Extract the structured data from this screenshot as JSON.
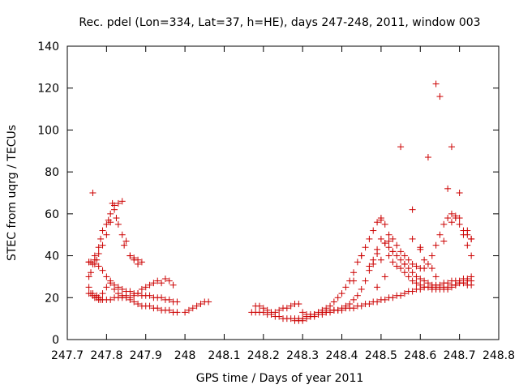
{
  "chart_data": {
    "type": "scatter",
    "title": "Rec. pdel (Lon=334, Lat=37, h=HE), days 247-248, 2011, window 003",
    "xlabel": "GPS time / Days of year 2011",
    "ylabel": "STEC from uqrg / TECUs",
    "xlim": [
      247.7,
      248.8
    ],
    "ylim": [
      0,
      140
    ],
    "x_ticks": [
      247.7,
      247.8,
      247.9,
      248.0,
      248.1,
      248.2,
      248.3,
      248.4,
      248.5,
      248.6,
      248.7,
      248.8
    ],
    "x_tick_labels": [
      "247.7",
      "247.8",
      "247.9",
      "248",
      "248.1",
      "248.2",
      "248.3",
      "248.4",
      "248.5",
      "248.6",
      "248.7",
      "248.8"
    ],
    "y_ticks": [
      0,
      20,
      40,
      60,
      80,
      100,
      120,
      140
    ],
    "y_tick_labels": [
      "0",
      "20",
      "40",
      "60",
      "80",
      "100",
      "120",
      "140"
    ],
    "grid": false,
    "marker": "+",
    "color": "#cc0000",
    "series": [
      {
        "x": [
          247.755,
          247.76,
          247.765,
          247.77,
          247.775,
          247.78,
          247.785,
          247.79,
          247.8,
          247.81,
          247.82,
          247.83,
          247.84,
          247.85,
          247.86,
          247.87,
          247.88,
          247.89,
          247.9,
          247.91,
          247.92,
          247.93,
          247.94,
          247.95,
          247.96,
          247.97,
          247.98,
          248.0,
          248.01,
          248.02,
          248.03,
          248.04,
          248.05,
          248.06,
          247.755,
          247.765,
          247.775,
          247.78,
          247.79,
          247.8,
          247.81,
          247.82,
          247.83,
          247.84,
          247.85,
          247.86,
          247.87,
          247.88,
          247.89,
          247.9,
          247.91,
          247.92,
          247.93,
          247.94,
          247.95,
          247.96,
          247.97,
          247.755,
          247.765,
          247.77,
          247.775,
          247.78,
          247.785,
          247.79,
          247.8,
          247.805,
          247.81,
          247.82,
          247.83,
          247.84,
          247.85,
          247.86,
          247.87,
          247.88,
          247.755,
          247.76,
          247.765,
          247.77,
          247.78,
          247.79,
          247.8,
          247.81,
          247.815,
          247.82,
          247.825,
          247.83,
          247.84,
          247.845,
          247.86,
          247.87,
          247.88,
          247.89,
          247.755,
          247.76,
          247.77,
          247.78,
          247.79,
          247.8,
          247.81,
          247.82,
          247.83,
          247.84,
          247.85,
          247.86,
          247.87,
          247.88,
          247.89,
          247.9,
          247.91,
          247.92,
          247.93,
          247.94,
          247.95,
          247.96,
          247.97,
          247.98
        ],
        "y": [
          22,
          22,
          21,
          20,
          20,
          19,
          19,
          19,
          19,
          19,
          20,
          20,
          20,
          20,
          19,
          18,
          17,
          16,
          16,
          16,
          15,
          15,
          14,
          14,
          14,
          13,
          13,
          13,
          14,
          15,
          16,
          17,
          18,
          18,
          25,
          22,
          21,
          20,
          22,
          25,
          27,
          24,
          22,
          21,
          21,
          20,
          21,
          22,
          24,
          25,
          26,
          27,
          28,
          27,
          29,
          28,
          26,
          37,
          36,
          40,
          38,
          44,
          48,
          52,
          55,
          57,
          60,
          64,
          65,
          66,
          47,
          40,
          38,
          36,
          30,
          32,
          70,
          38,
          41,
          45,
          50,
          56,
          65,
          62,
          58,
          55,
          50,
          45,
          40,
          39,
          38,
          37,
          37,
          37,
          36,
          35,
          33,
          30,
          28,
          26,
          25,
          24,
          23,
          23,
          22,
          22,
          21,
          21,
          21,
          20,
          20,
          20,
          19,
          19,
          18,
          18
        ]
      },
      {
        "x": [
          248.18,
          248.19,
          248.2,
          248.21,
          248.22,
          248.23,
          248.24,
          248.25,
          248.26,
          248.27,
          248.28,
          248.29,
          248.3,
          248.31,
          248.32,
          248.33,
          248.34,
          248.35,
          248.36,
          248.37,
          248.38,
          248.39,
          248.4,
          248.41,
          248.42,
          248.43,
          248.44,
          248.45,
          248.46,
          248.47,
          248.48,
          248.49,
          248.5,
          248.51,
          248.52,
          248.53,
          248.54,
          248.55,
          248.56,
          248.57,
          248.58,
          248.59,
          248.6,
          248.61,
          248.62,
          248.63,
          248.64,
          248.65,
          248.66,
          248.67,
          248.68,
          248.69,
          248.7,
          248.71,
          248.72,
          248.73,
          248.17,
          248.18,
          248.19,
          248.2,
          248.21,
          248.22,
          248.23,
          248.24,
          248.25,
          248.26,
          248.27,
          248.28,
          248.29,
          248.3,
          248.31,
          248.32,
          248.33,
          248.34,
          248.35,
          248.36,
          248.37,
          248.38,
          248.39,
          248.4,
          248.41,
          248.42,
          248.43,
          248.44,
          248.45,
          248.46,
          248.47,
          248.48,
          248.49,
          248.5,
          248.51,
          248.52,
          248.53,
          248.54,
          248.55,
          248.56,
          248.57,
          248.58,
          248.59,
          248.6,
          248.61,
          248.62,
          248.63,
          248.64,
          248.65,
          248.66,
          248.67,
          248.68,
          248.69,
          248.7,
          248.71,
          248.72,
          248.73,
          248.28,
          248.29,
          248.3,
          248.31,
          248.32,
          248.33,
          248.34,
          248.35,
          248.36,
          248.37,
          248.38,
          248.39,
          248.4,
          248.41,
          248.42,
          248.43,
          248.44,
          248.45,
          248.46,
          248.47,
          248.48,
          248.49,
          248.5,
          248.51,
          248.52,
          248.53,
          248.54,
          248.55,
          248.56,
          248.57,
          248.58,
          248.59,
          248.6,
          248.61,
          248.62,
          248.63,
          248.64,
          248.65,
          248.66,
          248.67,
          248.68,
          248.69,
          248.7,
          248.71,
          248.72,
          248.73
        ],
        "y": [
          13,
          13,
          13,
          12,
          12,
          11,
          11,
          10,
          10,
          10,
          9,
          9,
          9,
          10,
          11,
          12,
          12,
          13,
          13,
          14,
          14,
          14,
          14,
          15,
          15,
          15,
          16,
          16,
          17,
          17,
          18,
          18,
          19,
          19,
          20,
          20,
          21,
          21,
          22,
          23,
          23,
          24,
          24,
          25,
          25,
          25,
          26,
          26,
          27,
          27,
          28,
          28,
          28,
          29,
          29,
          30,
          13,
          16,
          16,
          15,
          14,
          13,
          13,
          14,
          15,
          15,
          16,
          17,
          17,
          13,
          12,
          12,
          12,
          13,
          14,
          15,
          16,
          18,
          20,
          22,
          25,
          28,
          32,
          37,
          40,
          44,
          48,
          52,
          56,
          58,
          55,
          50,
          48,
          45,
          42,
          40,
          38,
          36,
          35,
          34,
          34,
          36,
          40,
          45,
          50,
          55,
          58,
          60,
          58,
          55,
          52,
          50,
          48,
          10,
          10,
          10,
          11,
          11,
          11,
          12,
          12,
          13,
          13,
          14,
          14,
          15,
          16,
          17,
          19,
          21,
          24,
          28,
          33,
          38,
          43,
          48,
          46,
          44,
          42,
          40,
          38,
          36,
          34,
          32,
          30,
          29,
          28,
          27,
          26,
          25,
          25,
          24,
          24,
          25,
          26,
          27,
          27,
          28,
          28
        ]
      },
      {
        "x": [
          248.43,
          248.45,
          248.47,
          248.48,
          248.49,
          248.5,
          248.51,
          248.52,
          248.53,
          248.54,
          248.55,
          248.56,
          248.57,
          248.58,
          248.59,
          248.6,
          248.61,
          248.62,
          248.63,
          248.64,
          248.65,
          248.66,
          248.67,
          248.68,
          248.69,
          248.7,
          248.71,
          248.72,
          248.73,
          248.5,
          248.52,
          248.55,
          248.58,
          248.6,
          248.62,
          248.64,
          248.65,
          248.67,
          248.68,
          248.69,
          248.7,
          248.72,
          248.73,
          248.49,
          248.51,
          248.53,
          248.56,
          248.58,
          248.6,
          248.61,
          248.63,
          248.64,
          248.66,
          248.68,
          248.7,
          248.71,
          248.72,
          248.73
        ],
        "y": [
          28,
          40,
          35,
          36,
          41,
          38,
          46,
          40,
          37,
          35,
          34,
          32,
          30,
          28,
          27,
          26,
          25,
          25,
          24,
          24,
          24,
          25,
          25,
          26,
          26,
          27,
          27,
          26,
          26,
          57,
          47,
          92,
          62,
          44,
          87,
          122,
          116,
          72,
          92,
          59,
          70,
          52,
          48,
          25,
          30,
          42,
          36,
          48,
          43,
          38,
          34,
          30,
          47,
          56,
          58,
          50,
          45,
          40
        ]
      }
    ]
  }
}
